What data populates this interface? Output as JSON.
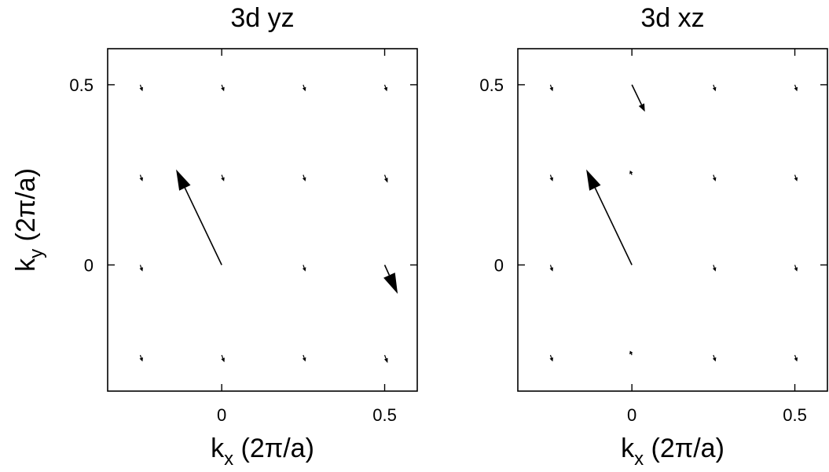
{
  "chart_data": [
    {
      "type": "quiver",
      "title": "3d yz",
      "xlabel": {
        "base": "k",
        "sub": "x",
        "rest": " (2π/a)"
      },
      "ylabel": {
        "base": "k",
        "sub": "y",
        "rest": " (2π/a)"
      },
      "xlim": [
        -0.35,
        0.6
      ],
      "ylim": [
        -0.35,
        0.6
      ],
      "xticks": [
        {
          "value": 0,
          "label": "0"
        },
        {
          "value": 0.5,
          "label": "0.5"
        }
      ],
      "yticks": [
        {
          "value": 0,
          "label": "0"
        },
        {
          "value": 0.5,
          "label": "0.5"
        }
      ],
      "grid": false,
      "arrows": [
        {
          "x": 0,
          "y": 0,
          "dx": -0.14,
          "dy": 0.265
        },
        {
          "x": 0.5,
          "y": 0,
          "dx": 0.04,
          "dy": -0.08
        },
        {
          "x": -0.25,
          "y": 0.5,
          "dx": 0.007,
          "dy": -0.018
        },
        {
          "x": 0,
          "y": 0.5,
          "dx": 0.007,
          "dy": -0.018
        },
        {
          "x": 0.25,
          "y": 0.5,
          "dx": 0.007,
          "dy": -0.018
        },
        {
          "x": 0.5,
          "y": 0.5,
          "dx": 0.007,
          "dy": -0.018
        },
        {
          "x": -0.25,
          "y": 0.25,
          "dx": 0.007,
          "dy": -0.018
        },
        {
          "x": 0,
          "y": 0.25,
          "dx": 0.007,
          "dy": -0.018
        },
        {
          "x": 0.25,
          "y": 0.25,
          "dx": 0.007,
          "dy": -0.018
        },
        {
          "x": 0.5,
          "y": 0.25,
          "dx": 0.009,
          "dy": -0.022
        },
        {
          "x": -0.25,
          "y": 0,
          "dx": 0.007,
          "dy": -0.018
        },
        {
          "x": 0.25,
          "y": 0,
          "dx": 0.007,
          "dy": -0.018
        },
        {
          "x": -0.25,
          "y": -0.25,
          "dx": 0.007,
          "dy": -0.018
        },
        {
          "x": 0,
          "y": -0.25,
          "dx": 0.008,
          "dy": -0.02
        },
        {
          "x": 0.25,
          "y": -0.25,
          "dx": 0.007,
          "dy": -0.018
        },
        {
          "x": 0.5,
          "y": -0.25,
          "dx": 0.009,
          "dy": -0.022
        }
      ]
    },
    {
      "type": "quiver",
      "title": "3d xz",
      "xlabel": {
        "base": "k",
        "sub": "x",
        "rest": " (2π/a)"
      },
      "ylabel": {
        "base": "",
        "sub": "",
        "rest": ""
      },
      "xlim": [
        -0.35,
        0.6
      ],
      "ylim": [
        -0.35,
        0.6
      ],
      "xticks": [
        {
          "value": 0,
          "label": "0"
        },
        {
          "value": 0.5,
          "label": "0.5"
        }
      ],
      "yticks": [
        {
          "value": 0,
          "label": "0"
        },
        {
          "value": 0.5,
          "label": "0.5"
        }
      ],
      "grid": false,
      "arrows": [
        {
          "x": 0,
          "y": 0,
          "dx": -0.14,
          "dy": 0.265
        },
        {
          "x": 0,
          "y": 0.5,
          "dx": 0.04,
          "dy": -0.075
        },
        {
          "x": -0.25,
          "y": 0.5,
          "dx": 0.007,
          "dy": -0.018
        },
        {
          "x": 0.25,
          "y": 0.5,
          "dx": 0.007,
          "dy": -0.018
        },
        {
          "x": 0.5,
          "y": 0.5,
          "dx": 0.007,
          "dy": -0.018
        },
        {
          "x": -0.25,
          "y": 0.25,
          "dx": 0.007,
          "dy": -0.018
        },
        {
          "x": 0,
          "y": 0.25,
          "dx": -0.006,
          "dy": 0.012
        },
        {
          "x": 0.25,
          "y": 0.25,
          "dx": 0.007,
          "dy": -0.018
        },
        {
          "x": 0.5,
          "y": 0.25,
          "dx": 0.007,
          "dy": -0.018
        },
        {
          "x": -0.25,
          "y": 0,
          "dx": 0.007,
          "dy": -0.018
        },
        {
          "x": 0.25,
          "y": 0,
          "dx": 0.007,
          "dy": -0.018
        },
        {
          "x": 0.5,
          "y": 0,
          "dx": 0.007,
          "dy": -0.018
        },
        {
          "x": -0.25,
          "y": -0.25,
          "dx": 0.007,
          "dy": -0.018
        },
        {
          "x": 0,
          "y": -0.25,
          "dx": -0.006,
          "dy": 0.012
        },
        {
          "x": 0.25,
          "y": -0.25,
          "dx": 0.007,
          "dy": -0.018
        },
        {
          "x": 0.5,
          "y": -0.25,
          "dx": 0.007,
          "dy": -0.018
        }
      ]
    }
  ]
}
